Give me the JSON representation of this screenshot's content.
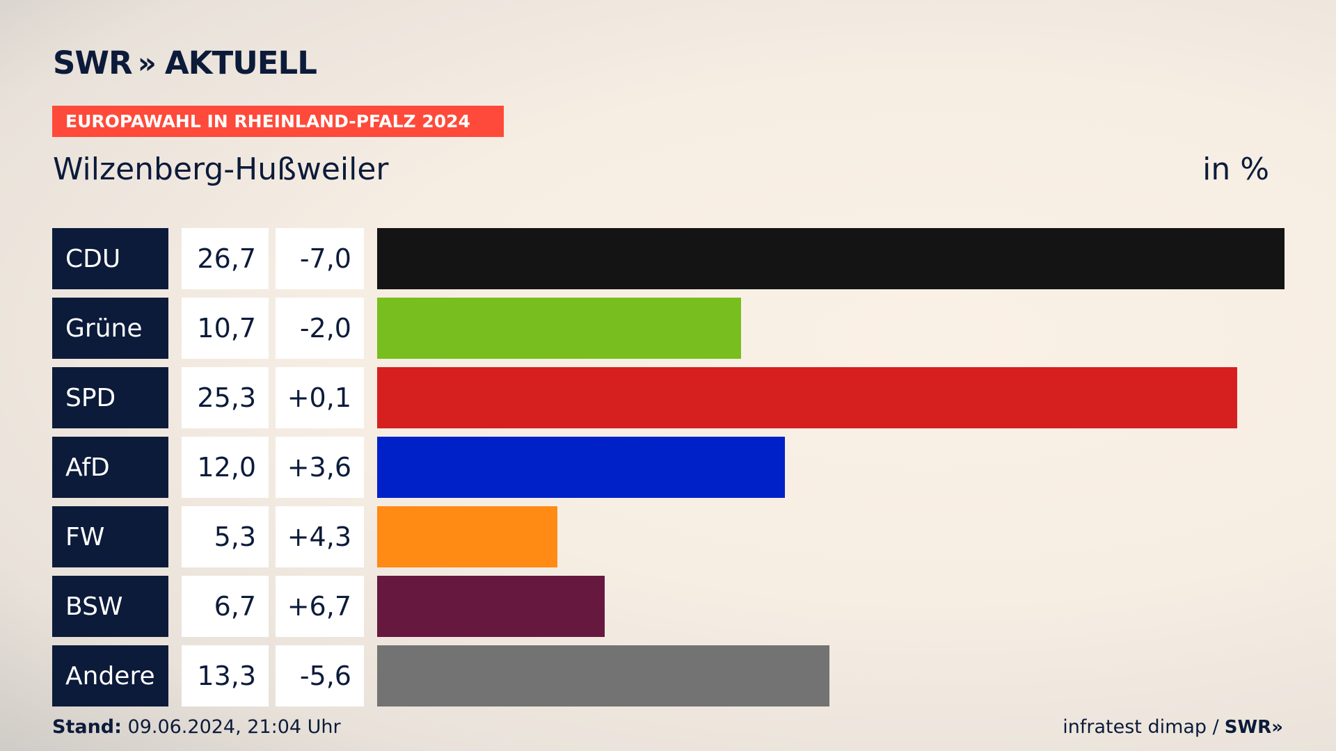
{
  "header": {
    "logo_text": "SWR",
    "logo_chevrons": "»",
    "logo_suffix": "AKTUELL",
    "banner": "EUROPAWAHL IN RHEINLAND-PFALZ 2024",
    "title": "Wilzenberg-Hußweiler",
    "unit": "in %"
  },
  "chart_data": {
    "type": "bar",
    "orientation": "horizontal",
    "categories": [
      "CDU",
      "Grüne",
      "SPD",
      "AfD",
      "FW",
      "BSW",
      "Andere"
    ],
    "values": [
      26.7,
      10.7,
      25.3,
      12.0,
      5.3,
      6.7,
      13.3
    ],
    "value_labels": [
      "26,7",
      "10,7",
      "25,3",
      "12,0",
      "5,3",
      "6,7",
      "13,3"
    ],
    "change_labels": [
      "-7,0",
      "-2,0",
      "+0,1",
      "+3,6",
      "+4,3",
      "+6,7",
      "-5,6"
    ],
    "colors": [
      "#141414",
      "#78be1e",
      "#d61f1f",
      "#0021c8",
      "#ff8a14",
      "#66183f",
      "#737373"
    ],
    "title": "Wilzenberg-Hußweiler",
    "xlabel": "",
    "ylabel": "",
    "xlim": [
      0,
      26.7
    ]
  },
  "footer": {
    "stand_label": "Stand:",
    "stand_value": "09.06.2024, 21:04 Uhr",
    "source": "infratest dimap /",
    "source_logo": "SWR»"
  }
}
